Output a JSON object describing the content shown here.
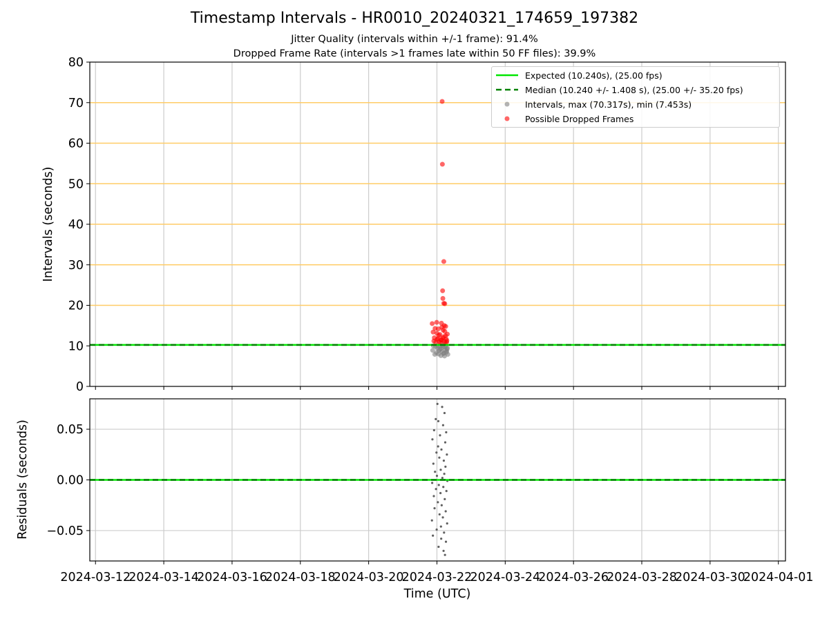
{
  "title": "Timestamp Intervals - HR0010_20240321_174659_197382",
  "subtitle_jitter": "Jitter Quality (intervals within +/-1 frame): 91.4%",
  "subtitle_dropped": "Dropped Frame Rate (intervals >1 frames late within 50 FF files): 39.9%",
  "legend": {
    "expected": "Expected (10.240s), (25.00 fps)",
    "median": "Median (10.240 +/- 1.408 s), (25.00 +/- 35.20 fps)",
    "intervals": "Intervals, max (70.317s), min (7.453s)",
    "dropped": "Possible Dropped Frames"
  },
  "colors": {
    "expected": "#00e600",
    "median": "#008000",
    "intervals": "#808080",
    "dropped": "#ff0000",
    "threshold": "#ffcc66",
    "grid": "#cccccc"
  },
  "chart_data": [
    {
      "type": "scatter",
      "panel": "intervals",
      "ylabel": "Intervals (seconds)",
      "ylim": [
        0,
        80
      ],
      "yticks": [
        0,
        10,
        20,
        30,
        40,
        50,
        60,
        70,
        80
      ],
      "ytick_labels": [
        "0",
        "10",
        "20",
        "30",
        "40",
        "50",
        "60",
        "70",
        "80"
      ],
      "xlim": [
        "2024-03-11T20:00",
        "2024-04-01T05:00"
      ],
      "xticks": [
        "2024-03-12",
        "2024-03-14",
        "2024-03-16",
        "2024-03-18",
        "2024-03-20",
        "2024-03-22",
        "2024-03-24",
        "2024-03-26",
        "2024-03-28",
        "2024-03-30",
        "2024-04-01"
      ],
      "grid": true,
      "threshold_lines": [
        20,
        30,
        40,
        50,
        60,
        70
      ],
      "expected_interval": 10.24,
      "median_interval": 10.24,
      "legend_position": "upper right",
      "series": [
        {
          "name": "Intervals, max (70.317s), min (7.453s)",
          "points": [
            [
              "2024-03-21T21:00",
              8.9
            ],
            [
              "2024-03-21T22:30",
              7.9
            ],
            [
              "2024-03-21T23:40",
              8.3
            ],
            [
              "2024-03-22T00:20",
              9.4
            ],
            [
              "2024-03-22T01:10",
              8.0
            ],
            [
              "2024-03-22T02:00",
              9.1
            ],
            [
              "2024-03-22T02:45",
              7.6
            ],
            [
              "2024-03-22T03:30",
              8.6
            ],
            [
              "2024-03-22T04:10",
              9.7
            ],
            [
              "2024-03-22T04:50",
              8.2
            ],
            [
              "2024-03-22T05:20",
              7.5
            ],
            [
              "2024-03-22T06:00",
              9.0
            ],
            [
              "2024-03-22T06:40",
              8.4
            ],
            [
              "2024-03-22T07:20",
              9.5
            ],
            [
              "2024-03-22T07:40",
              7.9
            ],
            [
              "2024-03-21T21:30",
              10.0
            ],
            [
              "2024-03-21T23:00",
              9.8
            ],
            [
              "2024-03-22T00:50",
              10.0
            ],
            [
              "2024-03-22T02:20",
              9.9
            ],
            [
              "2024-03-22T03:50",
              10.1
            ],
            [
              "2024-03-22T05:40",
              9.7
            ],
            [
              "2024-03-22T06:20",
              10.0
            ],
            [
              "2024-03-22T01:30",
              8.8
            ],
            [
              "2024-03-22T03:00",
              9.3
            ],
            [
              "2024-03-22T04:30",
              8.1
            ],
            [
              "2024-03-22T06:50",
              8.7
            ],
            [
              "2024-03-22T07:10",
              9.2
            ]
          ]
        },
        {
          "name": "Possible Dropped Frames",
          "points": [
            [
              "2024-03-22T03:40",
              70.3
            ],
            [
              "2024-03-22T03:50",
              54.8
            ],
            [
              "2024-03-22T04:50",
              30.8
            ],
            [
              "2024-03-22T04:00",
              23.6
            ],
            [
              "2024-03-22T04:10",
              21.7
            ],
            [
              "2024-03-22T04:50",
              20.5
            ],
            [
              "2024-03-22T05:30",
              20.4
            ],
            [
              "2024-03-21T20:40",
              15.5
            ],
            [
              "2024-03-21T23:50",
              15.8
            ],
            [
              "2024-03-22T01:00",
              14.2
            ],
            [
              "2024-03-22T03:10",
              15.6
            ],
            [
              "2024-03-22T05:10",
              15.0
            ],
            [
              "2024-03-21T21:20",
              13.4
            ],
            [
              "2024-03-22T00:00",
              13.1
            ],
            [
              "2024-03-22T02:10",
              12.8
            ],
            [
              "2024-03-22T04:20",
              13.9
            ],
            [
              "2024-03-22T06:00",
              12.5
            ],
            [
              "2024-03-21T22:10",
              12.0
            ],
            [
              "2024-03-22T00:40",
              11.8
            ],
            [
              "2024-03-22T02:50",
              11.5
            ],
            [
              "2024-03-22T04:40",
              12.2
            ],
            [
              "2024-03-22T06:30",
              11.7
            ],
            [
              "2024-03-21T21:50",
              11.2
            ],
            [
              "2024-03-22T01:40",
              11.0
            ],
            [
              "2024-03-22T03:20",
              11.4
            ],
            [
              "2024-03-22T05:00",
              11.1
            ],
            [
              "2024-03-22T07:00",
              11.3
            ],
            [
              "2024-03-21T23:10",
              10.9
            ],
            [
              "2024-03-22T02:30",
              10.8
            ],
            [
              "2024-03-22T05:50",
              10.8
            ],
            [
              "2024-03-22T06:50",
              10.9
            ],
            [
              "2024-03-22T01:20",
              12.6
            ],
            [
              "2024-03-22T03:30",
              14.6
            ],
            [
              "2024-03-22T05:30",
              13.6
            ],
            [
              "2024-03-21T22:40",
              14.3
            ],
            [
              "2024-03-22T07:20",
              12.9
            ],
            [
              "2024-03-22T06:10",
              14.8
            ],
            [
              "2024-03-22T00:10",
              11.6
            ],
            [
              "2024-03-22T04:00",
              11.9
            ]
          ]
        }
      ]
    },
    {
      "type": "scatter",
      "panel": "residuals",
      "ylabel": "Residuals (seconds)",
      "xlabel": "Time (UTC)",
      "ylim": [
        -0.08,
        0.08
      ],
      "yticks": [
        -0.05,
        0.0,
        0.05
      ],
      "ytick_labels": [
        "−0.05",
        "0.00",
        "0.05"
      ],
      "xlim": [
        "2024-03-11T20:00",
        "2024-04-01T05:00"
      ],
      "xticks": [
        "2024-03-12",
        "2024-03-14",
        "2024-03-16",
        "2024-03-18",
        "2024-03-20",
        "2024-03-22",
        "2024-03-24",
        "2024-03-26",
        "2024-03-28",
        "2024-03-30",
        "2024-04-01"
      ],
      "xtick_labels": [
        "2024-03-12",
        "2024-03-14",
        "2024-03-16",
        "2024-03-18",
        "2024-03-20",
        "2024-03-22",
        "2024-03-24",
        "2024-03-26",
        "2024-03-28",
        "2024-03-30",
        "2024-04-01"
      ],
      "grid": true,
      "zero_line": 0.0,
      "series": [
        {
          "name": "Residuals",
          "points": [
            [
              "2024-03-22T00:20",
              0.075
            ],
            [
              "2024-03-22T03:40",
              0.072
            ],
            [
              "2024-03-22T05:20",
              0.066
            ],
            [
              "2024-03-21T23:10",
              0.06
            ],
            [
              "2024-03-22T01:00",
              0.058
            ],
            [
              "2024-03-22T04:20",
              0.054
            ],
            [
              "2024-03-21T22:00",
              0.049
            ],
            [
              "2024-03-22T06:30",
              0.047
            ],
            [
              "2024-03-22T02:10",
              0.044
            ],
            [
              "2024-03-21T20:50",
              0.04
            ],
            [
              "2024-03-22T05:50",
              0.037
            ],
            [
              "2024-03-22T00:50",
              0.033
            ],
            [
              "2024-03-22T03:10",
              0.03
            ],
            [
              "2024-03-21T23:40",
              0.027
            ],
            [
              "2024-03-22T07:00",
              0.025
            ],
            [
              "2024-03-22T01:40",
              0.022
            ],
            [
              "2024-03-22T04:50",
              0.019
            ],
            [
              "2024-03-21T21:30",
              0.016
            ],
            [
              "2024-03-22T06:00",
              0.013
            ],
            [
              "2024-03-22T02:40",
              0.01
            ],
            [
              "2024-03-21T22:40",
              0.008
            ],
            [
              "2024-03-22T05:10",
              0.006
            ],
            [
              "2024-03-22T00:00",
              0.004
            ],
            [
              "2024-03-22T03:50",
              0.002
            ],
            [
              "2024-03-22T07:20",
              -0.001
            ],
            [
              "2024-03-21T20:40",
              -0.003
            ],
            [
              "2024-03-22T01:20",
              -0.005
            ],
            [
              "2024-03-22T04:30",
              -0.007
            ],
            [
              "2024-03-21T23:20",
              -0.009
            ],
            [
              "2024-03-22T06:40",
              -0.011
            ],
            [
              "2024-03-22T02:30",
              -0.013
            ],
            [
              "2024-03-21T21:50",
              -0.016
            ],
            [
              "2024-03-22T05:30",
              -0.019
            ],
            [
              "2024-03-22T00:40",
              -0.022
            ],
            [
              "2024-03-22T03:20",
              -0.025
            ],
            [
              "2024-03-21T22:20",
              -0.028
            ],
            [
              "2024-03-22T06:10",
              -0.031
            ],
            [
              "2024-03-22T01:50",
              -0.034
            ],
            [
              "2024-03-22T04:10",
              -0.037
            ],
            [
              "2024-03-21T20:30",
              -0.04
            ],
            [
              "2024-03-22T07:10",
              -0.043
            ],
            [
              "2024-03-22T02:50",
              -0.046
            ],
            [
              "2024-03-21T23:50",
              -0.049
            ],
            [
              "2024-03-22T05:00",
              -0.052
            ],
            [
              "2024-03-21T21:10",
              -0.055
            ],
            [
              "2024-03-22T03:00",
              -0.058
            ],
            [
              "2024-03-22T06:20",
              -0.061
            ],
            [
              "2024-03-22T01:10",
              -0.066
            ],
            [
              "2024-03-22T04:40",
              -0.07
            ],
            [
              "2024-03-22T05:40",
              -0.074
            ]
          ]
        }
      ]
    }
  ]
}
